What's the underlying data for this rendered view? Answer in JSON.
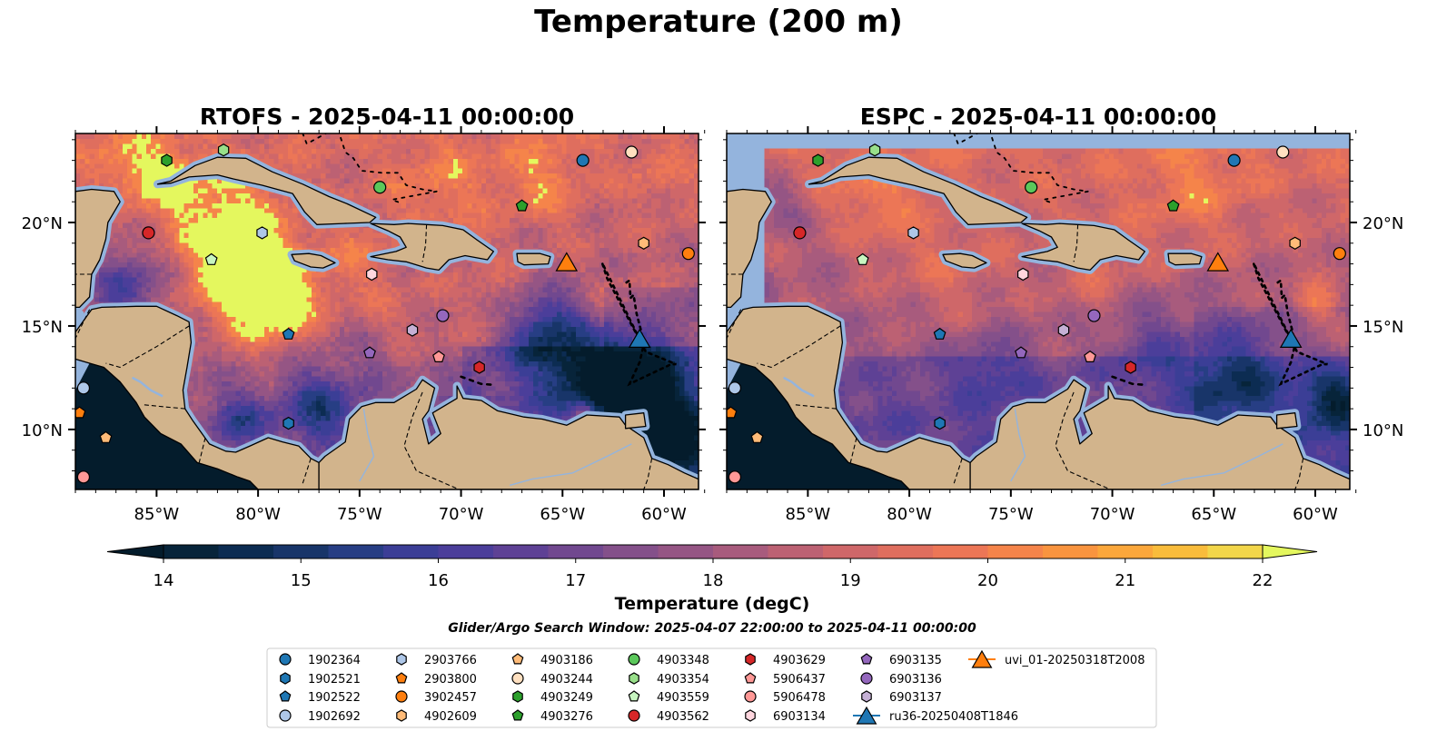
{
  "figure": {
    "title": "Temperature (200 m)",
    "search_window": "Glider/Argo Search Window: 2025-04-07 22:00:00 to 2025-04-11 00:00:00"
  },
  "chart_data": {
    "type": "heatmap",
    "panels": [
      {
        "name": "rtofs",
        "title": "RTOFS - 2025-04-11 00:00:00"
      },
      {
        "name": "espc",
        "title": "ESPC - 2025-04-11 00:00:00"
      }
    ],
    "xlim": [
      -89,
      -58.3
    ],
    "ylim": [
      7.1,
      24.3
    ],
    "x_ticks": [
      -85,
      -80,
      -75,
      -70,
      -65,
      -60
    ],
    "x_tick_labels": [
      "85°W",
      "80°W",
      "75°W",
      "70°W",
      "65°W",
      "60°W"
    ],
    "y_ticks": [
      10,
      15,
      20
    ],
    "y_tick_labels": [
      "10°N",
      "15°N",
      "20°N"
    ],
    "colorbar": {
      "label": "Temperature (degC)",
      "min": 14,
      "max": 22,
      "step": 0.5,
      "ticks": [
        14,
        15,
        16,
        17,
        18,
        19,
        20,
        21,
        22
      ],
      "tick_labels": [
        "14",
        "15",
        "16",
        "17",
        "18",
        "19",
        "20",
        "21",
        "22"
      ],
      "extend": "both",
      "colors": [
        "#07243a",
        "#0c2c52",
        "#183569",
        "#273e84",
        "#3b3e96",
        "#4b3e9a",
        "#5e4195",
        "#71488f",
        "#84508a",
        "#955584",
        "#a85b7d",
        "#bc6173",
        "#cf6769",
        "#df6e5e",
        "#ec7656",
        "#f5844a",
        "#f9943f",
        "#fba73b",
        "#f9bc3b",
        "#f2d64a"
      ],
      "under_color": "#041c2c",
      "over_color": "#e4f75e"
    },
    "floats": [
      {
        "id": "1902364",
        "lon": -64.0,
        "lat": 23.0,
        "marker": "circle",
        "color": "#1f77b4"
      },
      {
        "id": "1902521",
        "lon": -78.5,
        "lat": 10.3,
        "marker": "hexagon",
        "color": "#1f77b4"
      },
      {
        "id": "1902522",
        "lon": -78.5,
        "lat": 14.6,
        "marker": "pentagon",
        "color": "#1f77b4"
      },
      {
        "id": "1902692",
        "lon": -88.6,
        "lat": 12.0,
        "marker": "circle",
        "color": "#aec7e8"
      },
      {
        "id": "2903766",
        "lon": -79.8,
        "lat": 19.5,
        "marker": "hexagon",
        "color": "#aec7e8"
      },
      {
        "id": "2903800",
        "lon": -88.8,
        "lat": 10.8,
        "marker": "pentagon",
        "color": "#ff7f0e"
      },
      {
        "id": "3902457",
        "lon": -58.8,
        "lat": 18.5,
        "marker": "circle",
        "color": "#ff7f0e"
      },
      {
        "id": "4902609",
        "lon": -61.0,
        "lat": 19.0,
        "marker": "hexagon",
        "color": "#ffbb78"
      },
      {
        "id": "4903186",
        "lon": -87.5,
        "lat": 9.6,
        "marker": "pentagon",
        "color": "#ffbb78"
      },
      {
        "id": "4903244",
        "lon": -61.6,
        "lat": 23.4,
        "marker": "circle",
        "color": "#ffe0c0"
      },
      {
        "id": "4903249",
        "lon": -84.5,
        "lat": 23.0,
        "marker": "hexagon",
        "color": "#2ca02c"
      },
      {
        "id": "4903276",
        "lon": -67.0,
        "lat": 20.8,
        "marker": "pentagon",
        "color": "#2ca02c"
      },
      {
        "id": "4903348",
        "lon": -74.0,
        "lat": 21.7,
        "marker": "circle",
        "color": "#5bc85b"
      },
      {
        "id": "4903354",
        "lon": -81.7,
        "lat": 23.5,
        "marker": "hexagon",
        "color": "#98df8a"
      },
      {
        "id": "4903559",
        "lon": -82.3,
        "lat": 18.2,
        "marker": "pentagon",
        "color": "#c7f5c0"
      },
      {
        "id": "4903562",
        "lon": -85.4,
        "lat": 19.5,
        "marker": "circle",
        "color": "#d62728"
      },
      {
        "id": "4903629",
        "lon": -69.1,
        "lat": 13.0,
        "marker": "hexagon",
        "color": "#d62728"
      },
      {
        "id": "5906437",
        "lon": -71.1,
        "lat": 13.5,
        "marker": "pentagon",
        "color": "#ff9896"
      },
      {
        "id": "5906478",
        "lon": -88.6,
        "lat": 7.7,
        "marker": "circle",
        "color": "#ff9896"
      },
      {
        "id": "6903134",
        "lon": -74.4,
        "lat": 17.5,
        "marker": "hexagon",
        "color": "#ffd6de"
      },
      {
        "id": "6903135",
        "lon": -74.5,
        "lat": 13.7,
        "marker": "pentagon",
        "color": "#9467bd"
      },
      {
        "id": "6903136",
        "lon": -70.9,
        "lat": 15.5,
        "marker": "circle",
        "color": "#9467bd"
      },
      {
        "id": "6903137",
        "lon": -72.4,
        "lat": 14.8,
        "marker": "hexagon",
        "color": "#c5b0d5"
      }
    ],
    "gliders": [
      {
        "id": "ru36-20250408T1846",
        "lon": -61.2,
        "lat": 14.4,
        "marker": "triangle",
        "color": "#1f77b4"
      },
      {
        "id": "uvi_01-20250318T2008",
        "lon": -64.8,
        "lat": 18.1,
        "marker": "triangle",
        "color": "#ff7f0e"
      }
    ]
  }
}
